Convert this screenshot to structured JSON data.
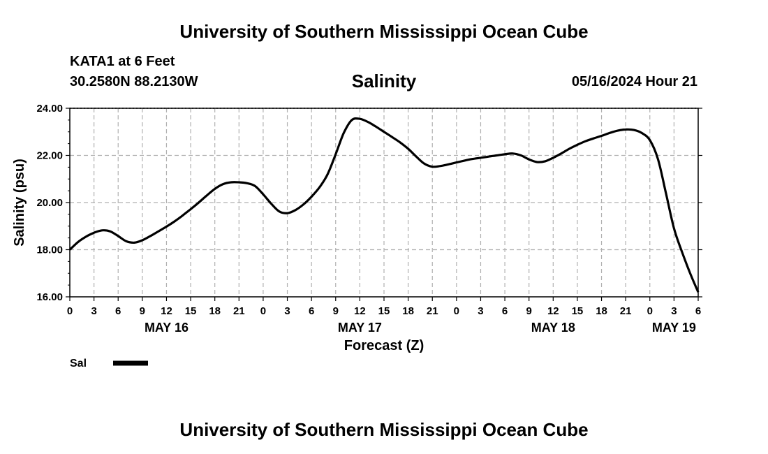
{
  "header": {
    "title": "University of Southern Mississippi Ocean Cube",
    "station": "KATA1 at 6 Feet",
    "location": "30.2580N  88.2130W",
    "chart_title": "Salinity",
    "timestamp": "05/16/2024 Hour 21"
  },
  "footer": {
    "title": "University of Southern Mississippi Ocean Cube"
  },
  "chart_data": {
    "type": "line",
    "title": "Salinity",
    "xlabel": "Forecast (Z)",
    "ylabel": "Salinity (psu)",
    "ylim": [
      16.0,
      24.0
    ],
    "yticks": [
      "16.00",
      "18.00",
      "20.00",
      "22.00",
      "24.00"
    ],
    "xlim": [
      0,
      78
    ],
    "xticks": [
      "0",
      "3",
      "6",
      "9",
      "12",
      "15",
      "18",
      "21",
      "0",
      "3",
      "6",
      "9",
      "12",
      "15",
      "18",
      "21",
      "0",
      "3",
      "6",
      "9",
      "12",
      "15",
      "18",
      "21",
      "0",
      "3",
      "6"
    ],
    "date_labels": [
      {
        "label": "MAY 16",
        "hour": 12
      },
      {
        "label": "MAY 17",
        "hour": 36
      },
      {
        "label": "MAY 18",
        "hour": 60
      },
      {
        "label": "MAY 19",
        "hour": 75
      }
    ],
    "grid": true,
    "legend": {
      "placement": "bottom-left",
      "entries": [
        {
          "name": "Sal",
          "color": "#000000"
        }
      ]
    },
    "series": [
      {
        "name": "Sal",
        "color": "#000000",
        "x": [
          0,
          1,
          2,
          3,
          4,
          5,
          6,
          7,
          8,
          9,
          10,
          11,
          12,
          13,
          14,
          15,
          16,
          17,
          18,
          19,
          20,
          21,
          22,
          23,
          24,
          25,
          26,
          27,
          28,
          29,
          30,
          31,
          32,
          33,
          34,
          35,
          36,
          37,
          38,
          39,
          40,
          41,
          42,
          43,
          44,
          45,
          46,
          47,
          48,
          49,
          50,
          51,
          52,
          53,
          54,
          55,
          56,
          57,
          58,
          59,
          60,
          61,
          62,
          63,
          64,
          65,
          66,
          67,
          68,
          69,
          70,
          71,
          72,
          73,
          74,
          75,
          76,
          77,
          78
        ],
        "y": [
          18.0,
          18.32,
          18.55,
          18.72,
          18.82,
          18.78,
          18.58,
          18.36,
          18.3,
          18.4,
          18.58,
          18.78,
          18.98,
          19.2,
          19.45,
          19.72,
          20.0,
          20.3,
          20.58,
          20.78,
          20.86,
          20.86,
          20.82,
          20.7,
          20.35,
          19.95,
          19.62,
          19.55,
          19.68,
          19.92,
          20.25,
          20.65,
          21.2,
          22.05,
          22.95,
          23.5,
          23.55,
          23.42,
          23.22,
          23.0,
          22.78,
          22.55,
          22.28,
          21.95,
          21.65,
          21.52,
          21.55,
          21.62,
          21.7,
          21.78,
          21.85,
          21.9,
          21.95,
          22.0,
          22.05,
          22.08,
          22.0,
          21.83,
          21.72,
          21.75,
          21.9,
          22.08,
          22.28,
          22.45,
          22.6,
          22.72,
          22.83,
          22.95,
          23.05,
          23.1,
          23.08,
          22.95,
          22.65,
          21.85,
          20.4,
          18.9,
          17.9,
          17.0,
          16.2
        ]
      }
    ]
  }
}
